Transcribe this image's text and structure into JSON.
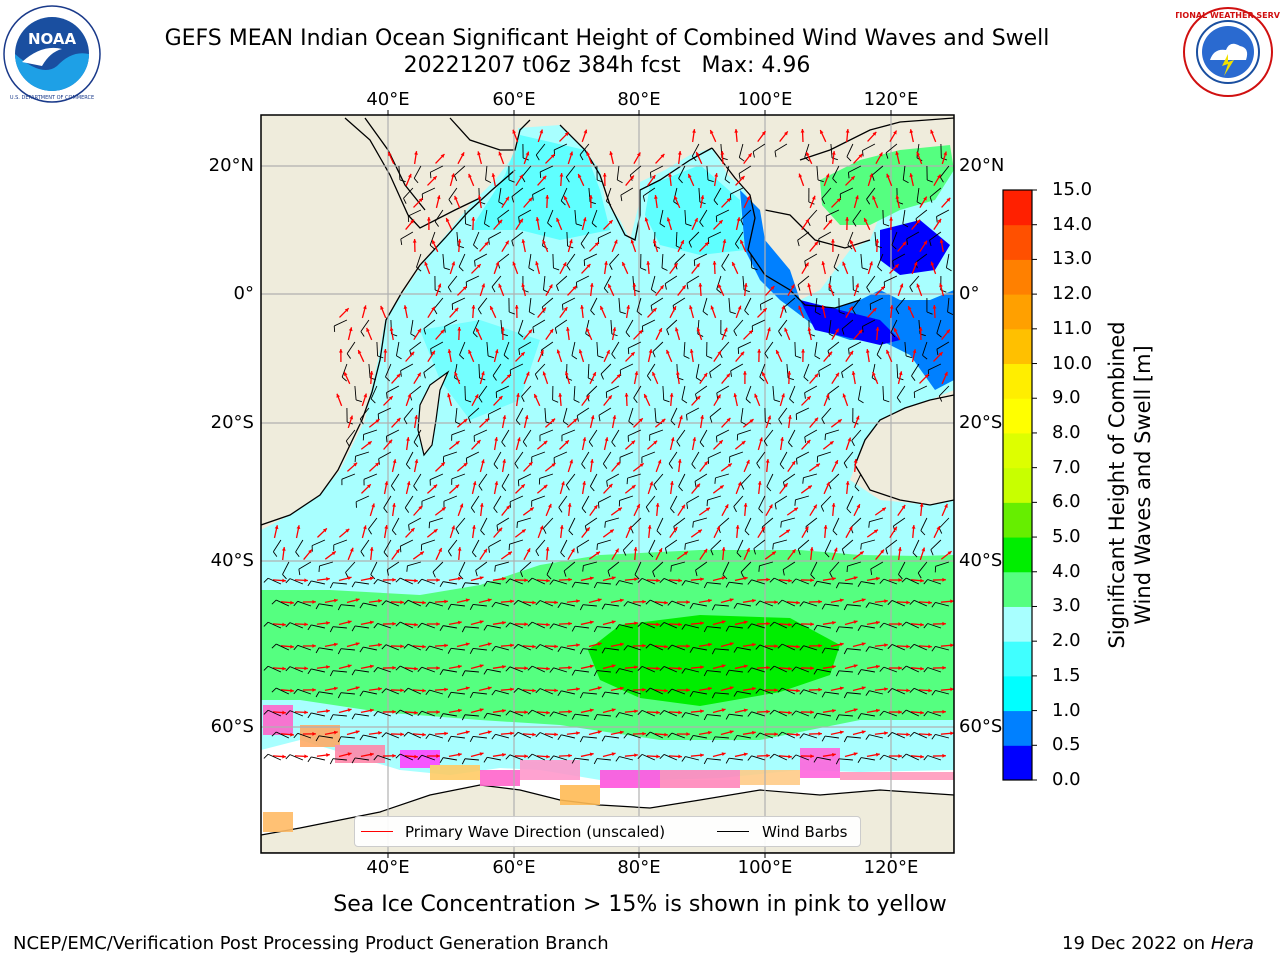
{
  "header": {
    "title": "GEFS MEAN Indian Ocean Significant Height of Combined Wind Waves and Swell",
    "subtitle": "20221207 t06z 384h fcst   Max: 4.96"
  },
  "logos": {
    "left": {
      "name": "NOAA",
      "ring_text": "NATIONAL OCEANIC AND ATMOSPHERIC ADMINISTRATION · U.S. DEPARTMENT OF COMMERCE"
    },
    "right": {
      "name": "NATIONAL WEATHER SERVICE"
    }
  },
  "map": {
    "lon_ticks": [
      "40°E",
      "60°E",
      "80°E",
      "100°E",
      "120°E"
    ],
    "lon_values": [
      40,
      60,
      80,
      100,
      120
    ],
    "lat_ticks": [
      "20°N",
      "0°",
      "20°S",
      "40°S",
      "60°S"
    ],
    "lat_values": [
      20,
      0,
      -20,
      -40,
      -60
    ],
    "extent": {
      "lon_min": 20,
      "lon_max": 130,
      "lat_min": -75,
      "lat_max": 28
    },
    "colors": {
      "land": "#efecdc",
      "grid": "#b0b0b0",
      "coast": "#000000"
    },
    "wave_arrow_color": "#ff0000",
    "wind_barb_color": "#000000"
  },
  "colorbar": {
    "title_line1": "Significant Height of Combined",
    "title_line2": "Wind Waves and Swell [m]",
    "levels": [
      "0.0",
      "0.5",
      "1.0",
      "1.5",
      "2.0",
      "3.0",
      "4.0",
      "5.0",
      "6.0",
      "7.0",
      "8.0",
      "9.0",
      "10.0",
      "11.0",
      "12.0",
      "13.0",
      "14.0",
      "15.0"
    ],
    "colors": [
      "#0000ff",
      "#0080ff",
      "#00ffff",
      "#40ffff",
      "#a8ffff",
      "#55ff80",
      "#00ee00",
      "#66ee00",
      "#c8ff00",
      "#ddff00",
      "#ffff00",
      "#ffee00",
      "#ffc000",
      "#ffa000",
      "#ff8000",
      "#ff5000",
      "#ff2000"
    ]
  },
  "legend": {
    "primary_wave": "Primary Wave Direction (unscaled)",
    "wind_barbs": "Wind Barbs"
  },
  "footer": {
    "note": "Sea Ice Concentration > 15% is shown in pink to yellow",
    "credit_left": "NCEP/EMC/Verification Post Processing Product Generation Branch",
    "credit_date": "19 Dec 2022 on",
    "credit_host": "Hera"
  }
}
